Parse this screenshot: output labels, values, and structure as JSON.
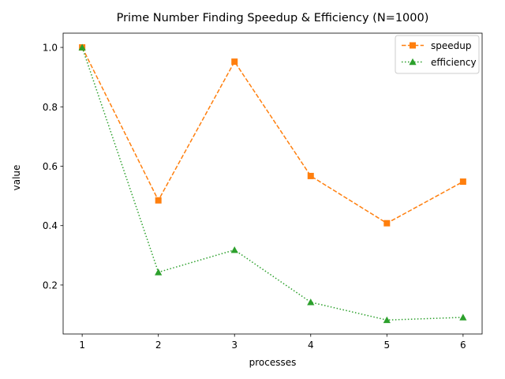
{
  "chart_data": {
    "type": "line",
    "title": "Prime Number Finding Speedup & Efficiency (N=1000)",
    "xlabel": "processes",
    "ylabel": "value",
    "x": [
      1,
      2,
      3,
      4,
      5,
      6
    ],
    "xlim": [
      0.75,
      6.25
    ],
    "ylim": [
      0.035,
      1.048
    ],
    "xticks": [
      "1",
      "2",
      "3",
      "4",
      "5",
      "6"
    ],
    "yticks": [
      0.2,
      0.4,
      0.6,
      0.8,
      1.0
    ],
    "ytick_labels": [
      "0.2",
      "0.4",
      "0.6",
      "0.8",
      "1.0"
    ],
    "grid": false,
    "legend_position": "top-right",
    "series": [
      {
        "name": "speedup",
        "values": [
          1.0,
          0.485,
          0.952,
          0.567,
          0.408,
          0.548
        ],
        "color": "#ff7f0e",
        "line_style": "dashed",
        "marker": "square"
      },
      {
        "name": "efficiency",
        "values": [
          1.0,
          0.243,
          0.318,
          0.142,
          0.082,
          0.091
        ],
        "color": "#2ca02c",
        "line_style": "dotted",
        "marker": "triangle-up"
      }
    ]
  }
}
